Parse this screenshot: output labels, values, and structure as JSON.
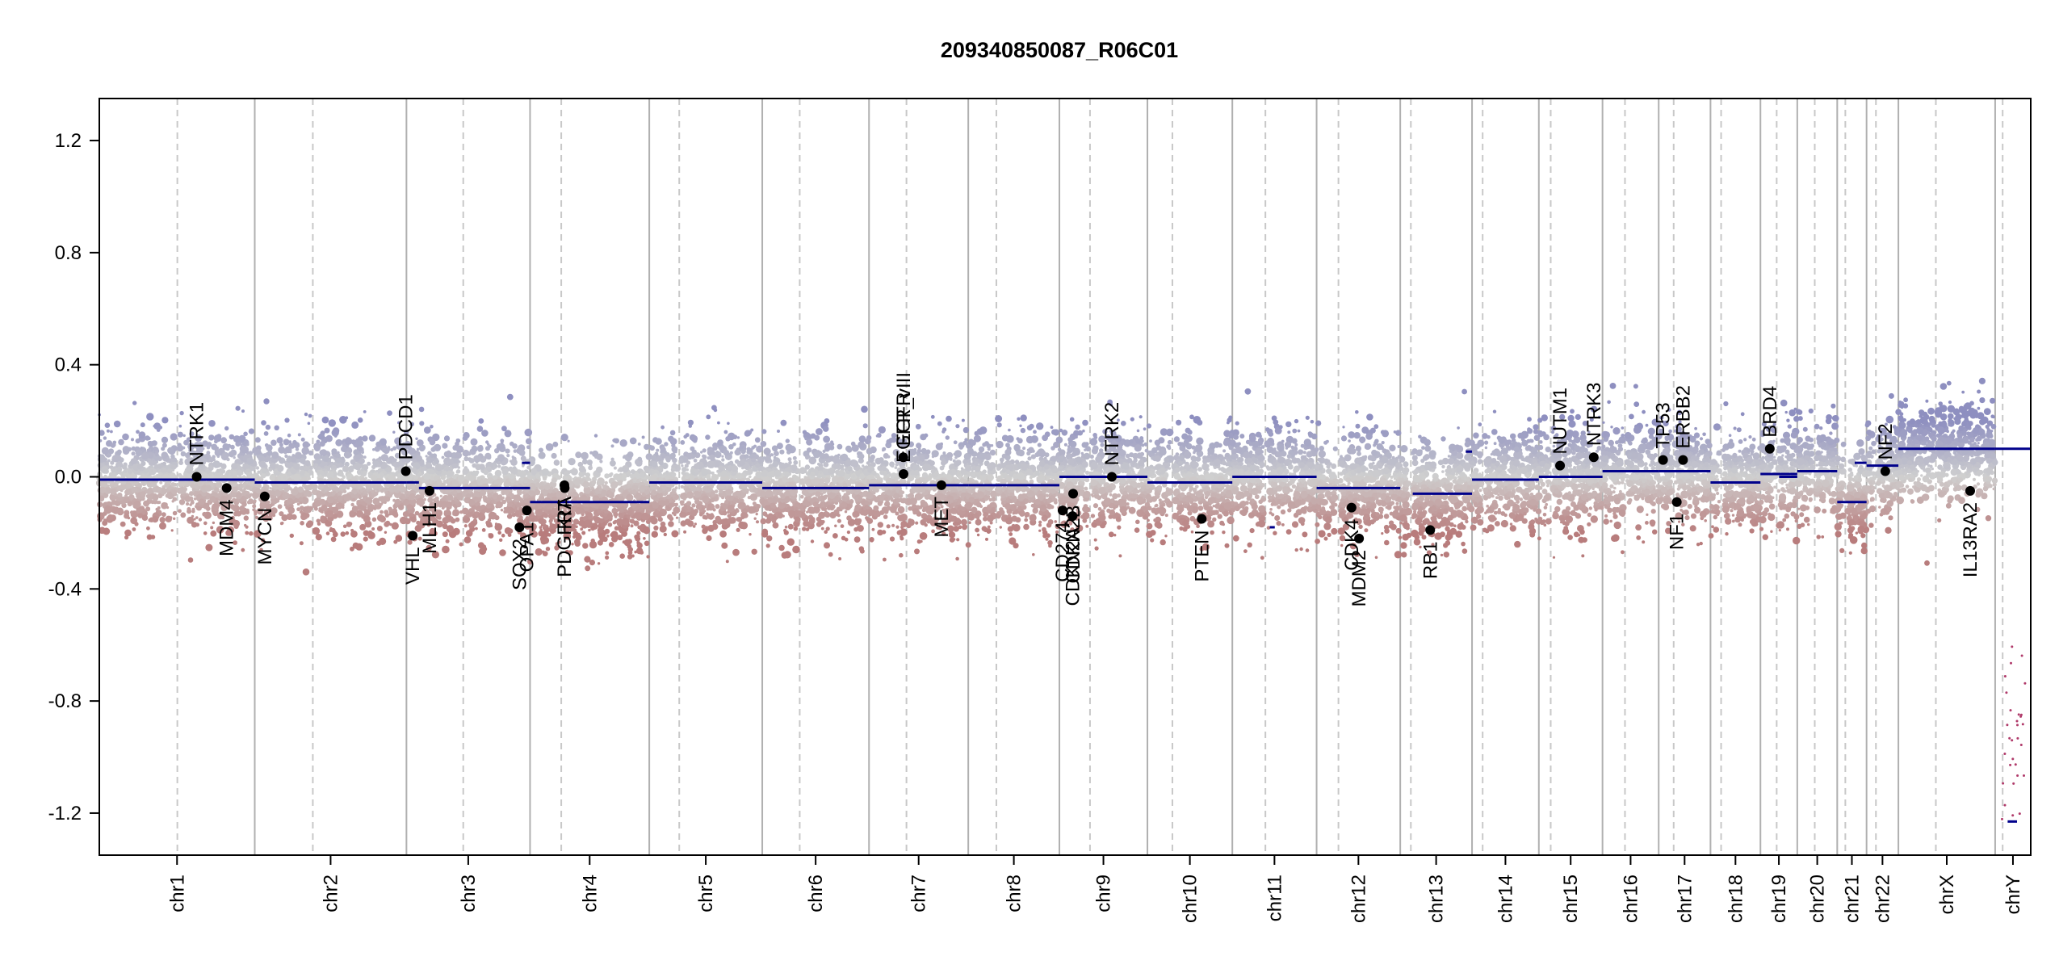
{
  "chart_data": {
    "type": "scatter",
    "title": "209340850087_R06C01",
    "xlabel": "",
    "ylabel": "",
    "ylim": [
      -1.35,
      1.35
    ],
    "yticks": [
      -1.2,
      -0.8,
      -0.4,
      0.0,
      0.4,
      0.8,
      1.2
    ],
    "ytick_labels": [
      "-1.2",
      "-0.8",
      "-0.4",
      "0.0",
      "0.4",
      "0.8",
      "1.2"
    ],
    "chromosomes": [
      {
        "name": "chr1",
        "length": 249,
        "centromere": 125
      },
      {
        "name": "chr2",
        "length": 243,
        "centromere": 93
      },
      {
        "name": "chr3",
        "length": 198,
        "centromere": 91
      },
      {
        "name": "chr4",
        "length": 191,
        "centromere": 50
      },
      {
        "name": "chr5",
        "length": 181,
        "centromere": 48
      },
      {
        "name": "chr6",
        "length": 171,
        "centromere": 60
      },
      {
        "name": "chr7",
        "length": 159,
        "centromere": 60
      },
      {
        "name": "chr8",
        "length": 146,
        "centromere": 45
      },
      {
        "name": "chr9",
        "length": 141,
        "centromere": 49
      },
      {
        "name": "chr10",
        "length": 136,
        "centromere": 40
      },
      {
        "name": "chr11",
        "length": 135,
        "centromere": 53
      },
      {
        "name": "chr12",
        "length": 134,
        "centromere": 35
      },
      {
        "name": "chr13",
        "length": 115,
        "centromere": 17
      },
      {
        "name": "chr14",
        "length": 107,
        "centromere": 17
      },
      {
        "name": "chr15",
        "length": 102,
        "centromere": 19
      },
      {
        "name": "chr16",
        "length": 90,
        "centromere": 36
      },
      {
        "name": "chr17",
        "length": 83,
        "centromere": 24
      },
      {
        "name": "chr18",
        "length": 80,
        "centromere": 17
      },
      {
        "name": "chr19",
        "length": 59,
        "centromere": 26
      },
      {
        "name": "chr20",
        "length": 64,
        "centromere": 28
      },
      {
        "name": "chr21",
        "length": 47,
        "centromere": 13
      },
      {
        "name": "chr22",
        "length": 51,
        "centromere": 15
      },
      {
        "name": "chrX",
        "length": 155,
        "centromere": 60
      },
      {
        "name": "chrY",
        "length": 57,
        "centromere": 12
      }
    ],
    "segments": [
      {
        "chr": "chr1",
        "start": 0,
        "end": 249,
        "value": -0.01
      },
      {
        "chr": "chr2",
        "start": 0,
        "end": 243,
        "value": -0.02
      },
      {
        "chr": "chr3",
        "start": 0,
        "end": 20,
        "value": -0.02
      },
      {
        "chr": "chr3",
        "start": 20,
        "end": 198,
        "value": -0.04
      },
      {
        "chr": "chr3",
        "start": 0,
        "end": 0,
        "value": -0.04
      },
      {
        "chr": "chr4",
        "start": 0,
        "end": 191,
        "value": -0.09
      },
      {
        "chr": "chr3",
        "start": 185,
        "end": 198,
        "value": 0.05
      },
      {
        "chr": "chr5",
        "start": 0,
        "end": 181,
        "value": -0.02
      },
      {
        "chr": "chr6",
        "start": 0,
        "end": 171,
        "value": -0.04
      },
      {
        "chr": "chr7",
        "start": 0,
        "end": 159,
        "value": -0.03
      },
      {
        "chr": "chr8",
        "start": 0,
        "end": 146,
        "value": -0.03
      },
      {
        "chr": "chr9",
        "start": 0,
        "end": 141,
        "value": 0.0
      },
      {
        "chr": "chr10",
        "start": 0,
        "end": 136,
        "value": -0.02
      },
      {
        "chr": "chr11",
        "start": 0,
        "end": 135,
        "value": 0.0
      },
      {
        "chr": "chr11",
        "start": 60,
        "end": 68,
        "value": -0.18
      },
      {
        "chr": "chr12",
        "start": 0,
        "end": 134,
        "value": -0.04
      },
      {
        "chr": "chr13",
        "start": 20,
        "end": 115,
        "value": -0.06
      },
      {
        "chr": "chr13",
        "start": 105,
        "end": 115,
        "value": 0.09
      },
      {
        "chr": "chr14",
        "start": 0,
        "end": 107,
        "value": -0.01
      },
      {
        "chr": "chr15",
        "start": 0,
        "end": 102,
        "value": 0.0
      },
      {
        "chr": "chr16",
        "start": 0,
        "end": 90,
        "value": 0.02
      },
      {
        "chr": "chr17",
        "start": 0,
        "end": 83,
        "value": 0.02
      },
      {
        "chr": "chr18",
        "start": 0,
        "end": 80,
        "value": -0.02
      },
      {
        "chr": "chr19",
        "start": 0,
        "end": 59,
        "value": 0.01
      },
      {
        "chr": "chr19",
        "start": 30,
        "end": 59,
        "value": 0.0
      },
      {
        "chr": "chr20",
        "start": 0,
        "end": 64,
        "value": 0.02
      },
      {
        "chr": "chr21",
        "start": 0,
        "end": 47,
        "value": -0.09
      },
      {
        "chr": "chr21",
        "start": 28,
        "end": 47,
        "value": 0.05
      },
      {
        "chr": "chr22",
        "start": 0,
        "end": 51,
        "value": 0.04
      },
      {
        "chr": "chrX",
        "start": 0,
        "end": 155,
        "value": 0.1
      },
      {
        "chr": "chrY",
        "start": 0,
        "end": 57,
        "value": 0.1
      },
      {
        "chr": "chrY",
        "start": 20,
        "end": 35,
        "value": -1.23
      }
    ],
    "genes": [
      {
        "name": "NTRK1",
        "chr": "chr1",
        "pos": 156,
        "value": 0.0
      },
      {
        "name": "MDM4",
        "chr": "chr1",
        "pos": 204,
        "value": -0.04
      },
      {
        "name": "MYCN",
        "chr": "chr2",
        "pos": 16,
        "value": -0.07
      },
      {
        "name": "PDCD1",
        "chr": "chr2",
        "pos": 242,
        "value": 0.02
      },
      {
        "name": "VHL",
        "chr": "chr3",
        "pos": 10,
        "value": -0.21
      },
      {
        "name": "MLH1",
        "chr": "chr3",
        "pos": 37,
        "value": -0.05
      },
      {
        "name": "SOX2",
        "chr": "chr3",
        "pos": 181,
        "value": -0.18
      },
      {
        "name": "OPA1",
        "chr": "chr3",
        "pos": 193,
        "value": -0.12
      },
      {
        "name": "PDGFRA",
        "chr": "chr4",
        "pos": 55,
        "value": -0.03
      },
      {
        "name": "KIT",
        "chr": "chr4",
        "pos": 55.5,
        "value": -0.04
      },
      {
        "name": "EGFR",
        "chr": "chr7",
        "pos": 55,
        "value": 0.07
      },
      {
        "name": "EGFR_vIII",
        "chr": "chr7",
        "pos": 55.3,
        "value": 0.01
      },
      {
        "name": "MET",
        "chr": "chr7",
        "pos": 116,
        "value": -0.03
      },
      {
        "name": "CD274",
        "chr": "chr9",
        "pos": 5,
        "value": -0.12
      },
      {
        "name": "CDKN2A",
        "chr": "chr9",
        "pos": 21,
        "value": -0.14
      },
      {
        "name": "CDKN2B",
        "chr": "chr9",
        "pos": 22,
        "value": -0.06
      },
      {
        "name": "NTRK2",
        "chr": "chr9",
        "pos": 84,
        "value": 0.0
      },
      {
        "name": "PTEN",
        "chr": "chr10",
        "pos": 87,
        "value": -0.15
      },
      {
        "name": "CDK4",
        "chr": "chr12",
        "pos": 56,
        "value": -0.11
      },
      {
        "name": "MDM2",
        "chr": "chr12",
        "pos": 68,
        "value": -0.22
      },
      {
        "name": "RB1",
        "chr": "chr13",
        "pos": 48,
        "value": -0.19
      },
      {
        "name": "NUTM1",
        "chr": "chr15",
        "pos": 34,
        "value": 0.04
      },
      {
        "name": "NTRK3",
        "chr": "chr15",
        "pos": 88,
        "value": 0.07
      },
      {
        "name": "TP53",
        "chr": "chr17",
        "pos": 7,
        "value": 0.06
      },
      {
        "name": "NF1",
        "chr": "chr17",
        "pos": 29,
        "value": -0.09
      },
      {
        "name": "ERBB2",
        "chr": "chr17",
        "pos": 39,
        "value": 0.06
      },
      {
        "name": "BRD4",
        "chr": "chr19",
        "pos": 15,
        "value": 0.1
      },
      {
        "name": "NF2",
        "chr": "chr22",
        "pos": 30,
        "value": 0.02
      },
      {
        "name": "IL13RA2",
        "chr": "chrX",
        "pos": 115,
        "value": -0.05
      }
    ],
    "colors": {
      "high": "#8e8fc0",
      "mid": "#cfcfcf",
      "low": "#b87c7c",
      "segment": "#00008b",
      "gene_dot": "#000000",
      "chr_boundary": "#b0b0b0",
      "centromere": "#c8c8c8"
    },
    "grid": false
  }
}
